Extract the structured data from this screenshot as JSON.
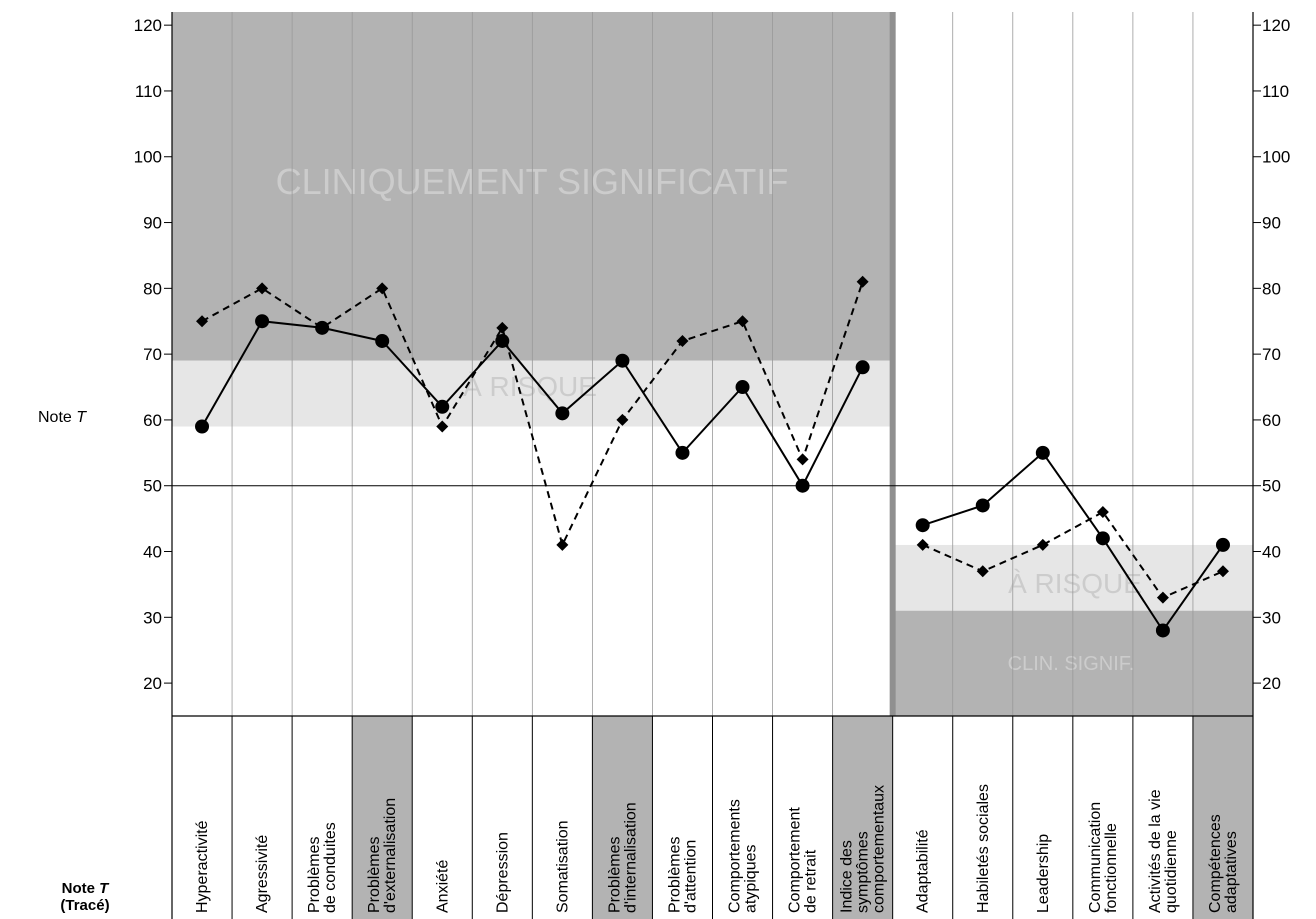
{
  "y_axis_label": "Note T",
  "y_axis_label_prefix": "Note ",
  "y_axis_label_italic": "T",
  "row_label_line1_prefix": "Note ",
  "row_label_line1_italic": "T",
  "row_label_line2": "(Tracé)",
  "colors": {
    "clinical_zone": "#b3b3b3",
    "risk_zone": "#e6e6e6",
    "highlight_column": "#b3b3b3",
    "zone_text": "#cccccc",
    "divider": "#999999",
    "line": "#000000"
  },
  "chart_data": {
    "type": "line",
    "ylim": [
      15,
      122
    ],
    "yticks": [
      20,
      30,
      40,
      50,
      60,
      70,
      80,
      90,
      100,
      110,
      120
    ],
    "reference_line": 50,
    "categories": [
      {
        "label": "Hyperactivité",
        "highlight": false
      },
      {
        "label": "Agressivité",
        "highlight": false
      },
      {
        "label": "Problèmes\nde conduites",
        "highlight": false
      },
      {
        "label": "Problèmes\nd'externalisation",
        "highlight": true
      },
      {
        "label": "Anxiété",
        "highlight": false
      },
      {
        "label": "Dépression",
        "highlight": false
      },
      {
        "label": "Somatisation",
        "highlight": false
      },
      {
        "label": "Problèmes\nd'internalisation",
        "highlight": true
      },
      {
        "label": "Problèmes\nd'attention",
        "highlight": false
      },
      {
        "label": "Comportements\natypiques",
        "highlight": false
      },
      {
        "label": "Comportement\nde retrait",
        "highlight": false
      },
      {
        "label": "Indice des\nsymptômes\ncomportementaux",
        "highlight": true
      },
      {
        "label": "Adaptabilité",
        "highlight": false
      },
      {
        "label": "Habiletés sociales",
        "highlight": false
      },
      {
        "label": "Leadership",
        "highlight": false
      },
      {
        "label": "Communication\nfonctionnelle",
        "highlight": false
      },
      {
        "label": "Activités de la vie\nquotidienne",
        "highlight": false
      },
      {
        "label": "Compétences\nadaptatives",
        "highlight": true
      }
    ],
    "problem_count": 12,
    "zones": {
      "problems": [
        {
          "label": "CLINIQUEMENT SIGNIFICATIF",
          "from": 69,
          "to": 122
        },
        {
          "label": "À RISQUE",
          "from": 59,
          "to": 69
        }
      ],
      "adaptive": [
        {
          "label": "À RISQUE",
          "from": 31,
          "to": 41
        },
        {
          "label": "CLIN. SIGNIF.",
          "from": 15,
          "to": 31
        }
      ]
    },
    "series": [
      {
        "marker": "circle",
        "dash": "solid",
        "problems": [
          59,
          75,
          74,
          72,
          62,
          72,
          61,
          69,
          55,
          65,
          50,
          68
        ],
        "adaptive": [
          44,
          47,
          55,
          42,
          28,
          41
        ]
      },
      {
        "marker": "diamond",
        "dash": "dashed",
        "problems": [
          75,
          80,
          74,
          80,
          59,
          74,
          41,
          60,
          72,
          75,
          54,
          81
        ],
        "adaptive": [
          41,
          37,
          41,
          46,
          33,
          37
        ]
      }
    ]
  }
}
